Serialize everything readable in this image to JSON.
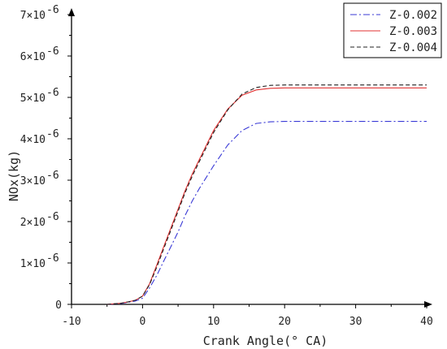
{
  "chart_data": {
    "type": "line",
    "xlabel": "Crank Angle(° CA)",
    "ylabel": "NOx(kg)",
    "xlim": [
      -10,
      40
    ],
    "ylim": [
      0,
      7e-06
    ],
    "x_ticks": [
      -10,
      0,
      10,
      20,
      30,
      40
    ],
    "x_tick_labels": [
      "-10",
      "0",
      "10",
      "20",
      "30",
      "40"
    ],
    "y_ticks": [
      0,
      1e-06,
      2e-06,
      3e-06,
      4e-06,
      5e-06,
      6e-06,
      7e-06
    ],
    "y_tick_labels": [
      "0",
      "1×10",
      "2×10",
      "3×10",
      "4×10",
      "5×10",
      "6×10",
      "7×10"
    ],
    "y_tick_exponent": "-6",
    "legend_position": "top-right",
    "grid": false,
    "series": [
      {
        "name": "Z-0.002",
        "color": "#3a3ad6",
        "dash": "dashdot",
        "x": [
          -5,
          -3,
          -2,
          -1,
          0,
          1,
          2,
          3,
          4,
          5,
          6,
          7,
          8,
          10,
          12,
          14,
          16,
          18,
          20,
          25,
          30,
          35,
          40
        ],
        "y": [
          0,
          2e-08,
          5e-08,
          8e-08,
          1.5e-07,
          4e-07,
          7e-07,
          1.05e-06,
          1.4e-06,
          1.75e-06,
          2.15e-06,
          2.5e-06,
          2.8e-06,
          3.35e-06,
          3.85e-06,
          4.2e-06,
          4.37e-06,
          4.41e-06,
          4.42e-06,
          4.42e-06,
          4.42e-06,
          4.42e-06,
          4.42e-06
        ]
      },
      {
        "name": "Z-0.003",
        "color": "#e03030",
        "dash": "solid",
        "x": [
          -5,
          -3,
          -2,
          -1,
          0,
          1,
          2,
          3,
          4,
          5,
          6,
          7,
          8,
          10,
          12,
          14,
          16,
          18,
          20,
          25,
          30,
          35,
          40
        ],
        "y": [
          0,
          3e-08,
          6e-08,
          1e-07,
          2e-07,
          5e-07,
          9.5e-07,
          1.4e-06,
          1.85e-06,
          2.3e-06,
          2.75e-06,
          3.15e-06,
          3.5e-06,
          4.2e-06,
          4.72e-06,
          5.05e-06,
          5.18e-06,
          5.22e-06,
          5.23e-06,
          5.23e-06,
          5.23e-06,
          5.23e-06,
          5.23e-06
        ]
      },
      {
        "name": "Z-0.004",
        "color": "#222222",
        "dash": "dashed",
        "x": [
          -5,
          -3,
          -2,
          -1,
          0,
          1,
          2,
          3,
          4,
          5,
          6,
          7,
          8,
          10,
          12,
          14,
          16,
          18,
          20,
          25,
          30,
          35,
          40
        ],
        "y": [
          0,
          3e-08,
          6e-08,
          1e-07,
          2e-07,
          4.8e-07,
          9e-07,
          1.35e-06,
          1.8e-06,
          2.25e-06,
          2.7e-06,
          3.1e-06,
          3.45e-06,
          4.15e-06,
          4.7e-06,
          5.08e-06,
          5.24e-06,
          5.29e-06,
          5.3e-06,
          5.3e-06,
          5.3e-06,
          5.3e-06,
          5.3e-06
        ]
      }
    ]
  }
}
